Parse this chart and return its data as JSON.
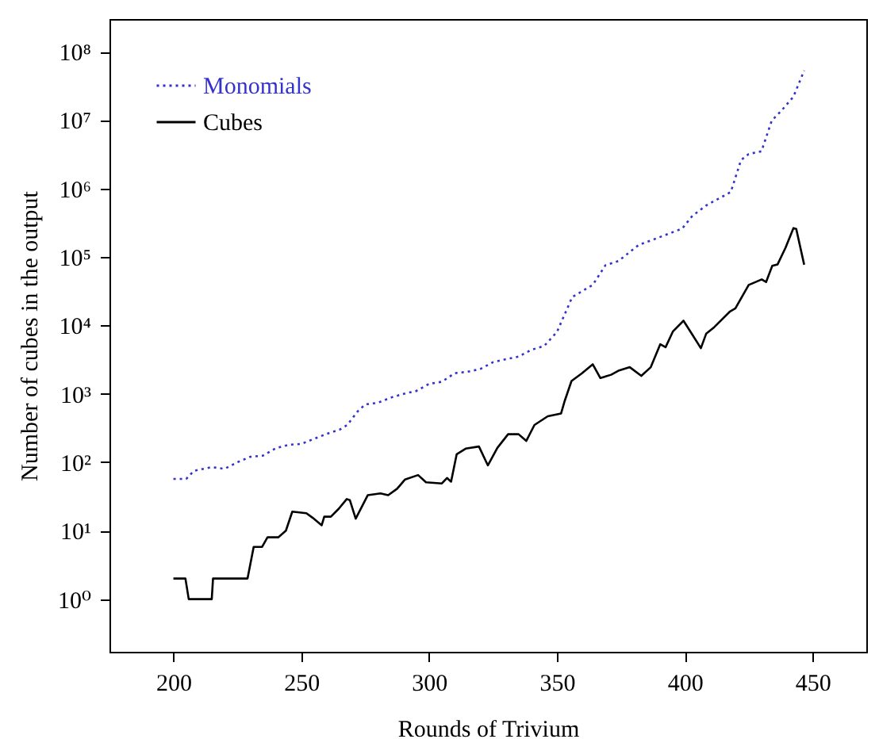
{
  "chart_data": {
    "type": "line",
    "xlabel": "Rounds of Trivium",
    "ylabel": "Number of cubes in the output",
    "log": "y",
    "xlim": [
      175,
      471
    ],
    "ylim": [
      0.17,
      300000000
    ],
    "xticks": [
      200,
      250,
      300,
      350,
      400,
      450
    ],
    "yticks": [
      {
        "value": 1,
        "label": "10⁰"
      },
      {
        "value": 10,
        "label": "10¹"
      },
      {
        "value": 100,
        "label": "10²"
      },
      {
        "value": 1000,
        "label": "10³"
      },
      {
        "value": 10000,
        "label": "10⁴"
      },
      {
        "value": 100000,
        "label": "10⁵"
      },
      {
        "value": 1000000,
        "label": "10⁶"
      },
      {
        "value": 10000000,
        "label": "10⁷"
      },
      {
        "value": 100000000,
        "label": "10⁸"
      }
    ],
    "grid": false,
    "legend": "top left",
    "marker": "none",
    "series": [
      {
        "name": "Monomials",
        "color": "#3333cc",
        "line_style": "dotted",
        "x": [
          200,
          205,
          208,
          215,
          220,
          225,
          230,
          235,
          240,
          245,
          250,
          255,
          260,
          265,
          268,
          272,
          275,
          280,
          285,
          290,
          295,
          300,
          305,
          310,
          315,
          320,
          325,
          330,
          335,
          340,
          345,
          350,
          356,
          364,
          369,
          374,
          382,
          391,
          399,
          403,
          408.5,
          418,
          422,
          425,
          430,
          434,
          438,
          442.5,
          446.7
        ],
        "values": [
          57,
          57,
          75,
          85,
          80,
          100,
          120,
          125,
          160,
          180,
          185,
          220,
          260,
          300,
          350,
          550,
          700,
          740,
          880,
          1000,
          1100,
          1400,
          1500,
          2000,
          2100,
          2300,
          2900,
          3200,
          3500,
          4400,
          5000,
          8000,
          26000,
          39000,
          76000,
          87000,
          150000,
          200000,
          260000,
          400000,
          570000,
          890000,
          2600000,
          3200000,
          3500000,
          9800000,
          14000000,
          22000000,
          53000000
        ]
      },
      {
        "name": "Cubes",
        "color": "#000000",
        "line_style": "solid",
        "x": [
          200,
          204.7,
          206,
          215,
          215.5,
          229,
          231.4,
          234.7,
          236.8,
          241,
          244,
          246.5,
          252,
          254.4,
          258,
          259,
          261.6,
          264.7,
          267.8,
          269,
          271.3,
          276,
          281,
          284,
          287.5,
          290.6,
          295.7,
          298.8,
          305,
          307,
          308.6,
          310.8,
          314.3,
          319.5,
          323,
          326.7,
          330.9,
          335,
          338,
          341.2,
          346.4,
          351.6,
          353,
          355.7,
          359.8,
          364,
          367,
          371.2,
          374.3,
          378.5,
          383,
          386.7,
          390.4,
          392.5,
          395.4,
          399.5,
          403.2,
          406.3,
          408.4,
          411.5,
          417.7,
          419.8,
          425,
          430.1,
          431.8,
          434.2,
          436.3,
          439.4,
          442.5,
          443.6,
          446.7
        ],
        "values": [
          2,
          2,
          1,
          1,
          2,
          2,
          5.8,
          5.8,
          8,
          8,
          10,
          19,
          18,
          15.5,
          12,
          16,
          16,
          21,
          29,
          28,
          15,
          33,
          35,
          33,
          41,
          56,
          65,
          51,
          49,
          59,
          52,
          131,
          158,
          170,
          90,
          162,
          257,
          257,
          205,
          350,
          470,
          515,
          780,
          1540,
          2000,
          2700,
          1700,
          1900,
          2200,
          2450,
          1830,
          2450,
          5300,
          4800,
          8200,
          11700,
          7100,
          4650,
          7600,
          9400,
          16000,
          17700,
          39000,
          47000,
          43000,
          74000,
          78000,
          136000,
          264000,
          257000,
          77000
        ]
      }
    ]
  }
}
